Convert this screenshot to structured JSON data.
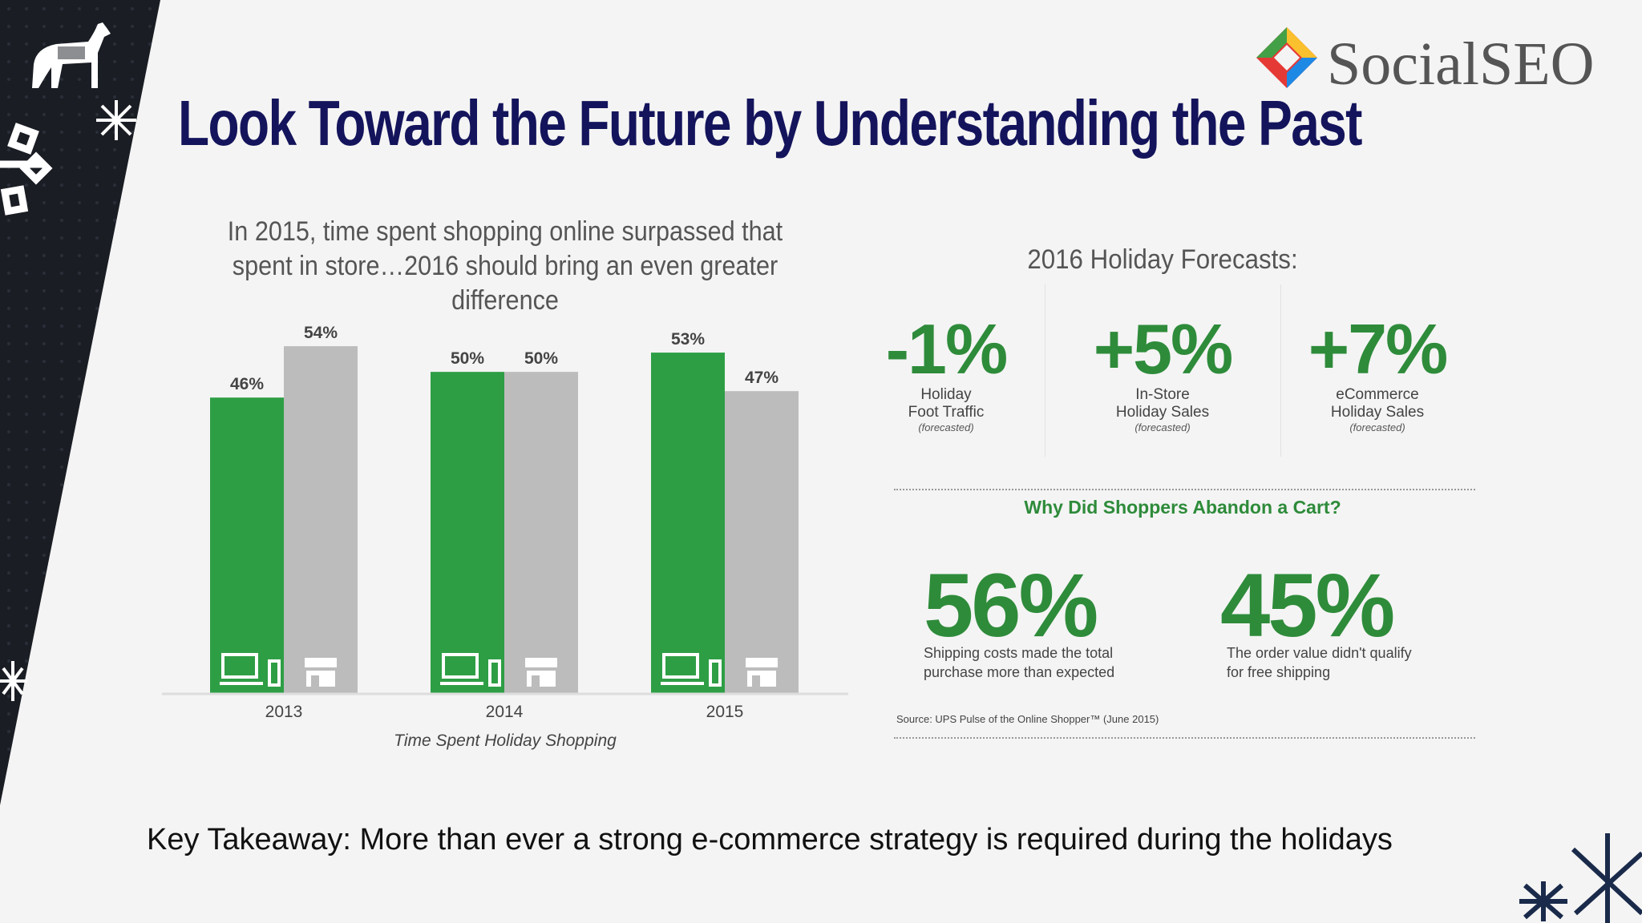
{
  "title": "Look Toward the Future by Understanding the Past",
  "logo": {
    "text": "SocialSEO"
  },
  "chart_subtitle": "In 2015, time spent shopping online surpassed that spent in store…2016 should bring an even greater difference",
  "chart_data": {
    "type": "bar",
    "categories": [
      "2013",
      "2014",
      "2015"
    ],
    "series": [
      {
        "icon": "laptop-phone-icon",
        "color": "#2e9e45",
        "values": [
          46,
          50,
          53
        ]
      },
      {
        "icon": "store-icon",
        "color": "#bcbcbc",
        "values": [
          54,
          50,
          47
        ]
      }
    ],
    "value_labels": [
      [
        "46%",
        "50%",
        "53%"
      ],
      [
        "54%",
        "50%",
        "47%"
      ]
    ],
    "xlabel": "Time Spent Holiday Shopping",
    "ylabel": "",
    "ylim": [
      0,
      58
    ]
  },
  "forecasts": {
    "title": "2016 Holiday Forecasts:",
    "items": [
      {
        "value": "-1%",
        "line1": "Holiday",
        "line2": "Foot Traffic",
        "note": "(forecasted)"
      },
      {
        "value": "+5%",
        "line1": "In-Store",
        "line2": "Holiday Sales",
        "note": "(forecasted)"
      },
      {
        "value": "+7%",
        "line1": "eCommerce",
        "line2": "Holiday Sales",
        "note": "(forecasted)"
      }
    ]
  },
  "cart": {
    "title": "Why Did Shoppers Abandon a Cart?",
    "items": [
      {
        "value": "56%",
        "line1": "Shipping costs made the total",
        "line2": "purchase more than expected"
      },
      {
        "value": "45%",
        "line1": "The order value didn't qualify",
        "line2": "for free shipping"
      }
    ],
    "source": "Source: UPS Pulse of the Online Shopper™ (June 2015)"
  },
  "takeaway": "Key Takeaway: More than ever a strong e-commerce strategy is required during the holidays",
  "colors": {
    "title": "#14145c",
    "green": "#2e9e45",
    "gray": "#bcbcbc",
    "dark": "#1a1d24"
  }
}
